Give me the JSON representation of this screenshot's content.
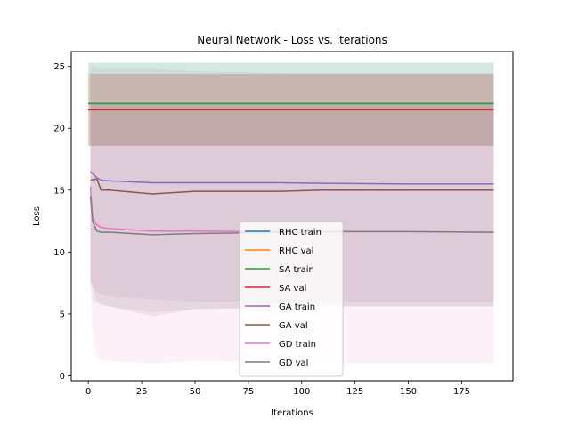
{
  "chart_data": {
    "type": "line",
    "title": "Neural Network - Loss vs. iterations",
    "xlabel": "Iterations",
    "ylabel": "Loss",
    "xlim": [
      -8,
      199
    ],
    "ylim": [
      -0.4,
      26.2
    ],
    "xticks": [
      0,
      25,
      50,
      75,
      100,
      125,
      150,
      175
    ],
    "yticks": [
      0,
      5,
      10,
      15,
      20,
      25
    ],
    "grid": false,
    "legend_position": "lower-center",
    "series": [
      {
        "name": "RHC train",
        "color": "#1f77b4",
        "x": [
          0,
          190
        ],
        "y": [
          22.0,
          22.0
        ],
        "band_low": [
          18.6,
          18.6
        ],
        "band_high": [
          25.3,
          25.3
        ]
      },
      {
        "name": "RHC val",
        "color": "#ff7f0e",
        "x": [
          0,
          190
        ],
        "y": [
          21.5,
          21.5
        ],
        "band_low": [
          18.6,
          18.6
        ],
        "band_high": [
          24.4,
          24.4
        ]
      },
      {
        "name": "SA train",
        "color": "#2ca02c",
        "x": [
          0,
          190
        ],
        "y": [
          22.0,
          22.0
        ],
        "band_low": [
          18.6,
          18.6
        ],
        "band_high": [
          25.3,
          25.3
        ]
      },
      {
        "name": "SA val",
        "color": "#d62728",
        "x": [
          0,
          190
        ],
        "y": [
          21.5,
          21.5
        ],
        "band_low": [
          18.6,
          18.6
        ],
        "band_high": [
          24.4,
          24.4
        ]
      },
      {
        "name": "GA train",
        "color": "#9467bd",
        "x": [
          1,
          4,
          6,
          10,
          30,
          50,
          90,
          110,
          150,
          190
        ],
        "y": [
          16.5,
          16.0,
          15.8,
          15.75,
          15.6,
          15.6,
          15.6,
          15.55,
          15.5,
          15.5
        ],
        "band_low": [
          7.6,
          6.8,
          6.6,
          6.4,
          6.2,
          6.0,
          6.0,
          6.0,
          6.0,
          6.0
        ],
        "band_high": [
          25.0,
          25.0,
          24.8,
          24.8,
          24.8,
          24.6,
          24.5,
          24.5,
          24.5,
          24.5
        ]
      },
      {
        "name": "GA val",
        "color": "#8c564b",
        "x": [
          1,
          4,
          6,
          10,
          30,
          50,
          90,
          110,
          150,
          190
        ],
        "y": [
          15.8,
          15.9,
          15.0,
          15.0,
          14.7,
          14.9,
          14.9,
          15.0,
          15.0,
          15.0
        ],
        "band_low": [
          7.7,
          6.1,
          5.8,
          5.6,
          4.8,
          5.4,
          5.5,
          5.6,
          5.6,
          5.6
        ],
        "band_high": [
          24.4,
          24.4,
          24.4,
          24.4,
          24.4,
          24.4,
          24.4,
          24.4,
          24.4,
          24.4
        ]
      },
      {
        "name": "GD train",
        "color": "#e377c2",
        "x": [
          1,
          2,
          4,
          6,
          10,
          30,
          50,
          90,
          110,
          150,
          190
        ],
        "y": [
          15.3,
          12.8,
          12.2,
          12.0,
          11.9,
          11.7,
          11.7,
          11.65,
          11.65,
          11.65,
          11.6
        ],
        "band_low": [
          7.8,
          3.5,
          1.5,
          1.3,
          1.2,
          1.0,
          1.2,
          1.1,
          1.0,
          1.0,
          1.0
        ],
        "band_high": [
          21.9,
          21.9,
          21.9,
          21.9,
          21.9,
          21.9,
          21.9,
          21.9,
          21.9,
          21.9,
          21.9
        ]
      },
      {
        "name": "GD val",
        "color": "#7f7f7f",
        "x": [
          1,
          2,
          4,
          6,
          10,
          30,
          50,
          90,
          110,
          150,
          190
        ],
        "y": [
          14.5,
          12.5,
          11.7,
          11.6,
          11.6,
          11.4,
          11.5,
          11.6,
          11.65,
          11.65,
          11.6
        ],
        "band_low": [
          7.4,
          6.0,
          5.8,
          5.7,
          5.6,
          5.1,
          5.4,
          5.5,
          5.6,
          5.6,
          5.6
        ],
        "band_high": [
          21.9,
          21.9,
          21.9,
          21.9,
          21.9,
          21.9,
          21.9,
          21.9,
          21.9,
          21.9,
          21.9
        ]
      }
    ]
  }
}
